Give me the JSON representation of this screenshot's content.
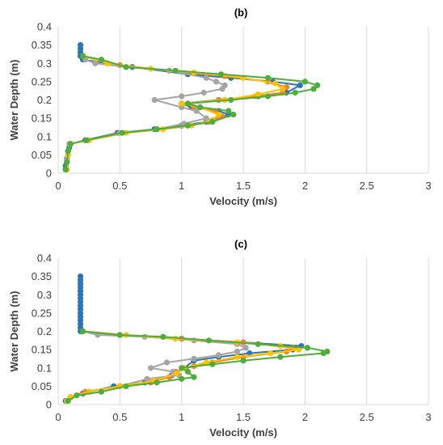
{
  "colors": {
    "gridline": "#d9d9d9",
    "series": [
      "#2e75b6",
      "#f4802a",
      "#a5a5a5",
      "#ffc000",
      "#4daf3a"
    ]
  },
  "chart_data": [
    {
      "type": "line",
      "title": "(b)",
      "xlabel": "Velocity (m/s)",
      "ylabel": "Water Depth (m)",
      "xlim": [
        0,
        3
      ],
      "ylim": [
        0,
        0.4
      ],
      "xticks": [
        "0",
        "0.5",
        "1",
        "1.5",
        "2",
        "2.5",
        "3"
      ],
      "yticks": [
        "0",
        "0.05",
        "0.1",
        "0.15",
        "0.2",
        "0.25",
        "0.3",
        "0.35",
        "0.4"
      ],
      "grid": "vertical",
      "series": [
        {
          "color": "#2e75b6",
          "points": [
            [
              0.06,
              0.01
            ],
            [
              0.06,
              0.02
            ],
            [
              0.07,
              0.03
            ],
            [
              0.07,
              0.04
            ],
            [
              0.08,
              0.05
            ],
            [
              0.08,
              0.06
            ],
            [
              0.09,
              0.07
            ],
            [
              0.1,
              0.08
            ],
            [
              0.22,
              0.09
            ],
            [
              0.48,
              0.11
            ],
            [
              0.78,
              0.12
            ],
            [
              1.0,
              0.13
            ],
            [
              1.2,
              0.14
            ],
            [
              1.38,
              0.16
            ],
            [
              1.3,
              0.17
            ],
            [
              1.08,
              0.18
            ],
            [
              1.0,
              0.19
            ],
            [
              1.3,
              0.2
            ],
            [
              1.62,
              0.21
            ],
            [
              1.85,
              0.22
            ],
            [
              1.96,
              0.24
            ],
            [
              1.74,
              0.25
            ],
            [
              1.4,
              0.26
            ],
            [
              1.05,
              0.27
            ],
            [
              0.6,
              0.29
            ],
            [
              0.2,
              0.31
            ],
            [
              0.18,
              0.32
            ],
            [
              0.18,
              0.33
            ],
            [
              0.18,
              0.34
            ],
            [
              0.18,
              0.35
            ]
          ]
        },
        {
          "color": "#f4802a",
          "points": [
            [
              0.07,
              0.01
            ],
            [
              0.07,
              0.03
            ],
            [
              0.08,
              0.06
            ],
            [
              0.1,
              0.08
            ],
            [
              0.24,
              0.09
            ],
            [
              0.5,
              0.11
            ],
            [
              0.8,
              0.12
            ],
            [
              1.05,
              0.13
            ],
            [
              1.22,
              0.14
            ],
            [
              1.33,
              0.155
            ],
            [
              1.27,
              0.17
            ],
            [
              1.1,
              0.18
            ],
            [
              1.05,
              0.19
            ],
            [
              1.3,
              0.2
            ],
            [
              1.6,
              0.21
            ],
            [
              1.82,
              0.22
            ],
            [
              1.85,
              0.235
            ],
            [
              1.7,
              0.25
            ],
            [
              1.35,
              0.265
            ],
            [
              0.9,
              0.28
            ],
            [
              0.5,
              0.295
            ],
            [
              0.2,
              0.32
            ]
          ]
        },
        {
          "color": "#a5a5a5",
          "points": [
            [
              0.06,
              0.01
            ],
            [
              0.07,
              0.04
            ],
            [
              0.09,
              0.08
            ],
            [
              0.25,
              0.09
            ],
            [
              0.5,
              0.11
            ],
            [
              0.8,
              0.12
            ],
            [
              1.02,
              0.135
            ],
            [
              1.2,
              0.15
            ],
            [
              1.12,
              0.17
            ],
            [
              1.0,
              0.18
            ],
            [
              0.78,
              0.2
            ],
            [
              1.0,
              0.21
            ],
            [
              1.18,
              0.22
            ],
            [
              1.33,
              0.23
            ],
            [
              1.35,
              0.24
            ],
            [
              1.28,
              0.25
            ],
            [
              1.2,
              0.26
            ],
            [
              0.9,
              0.28
            ],
            [
              0.55,
              0.29
            ],
            [
              0.3,
              0.3
            ],
            [
              0.22,
              0.31
            ]
          ]
        },
        {
          "color": "#ffc000",
          "points": [
            [
              0.07,
              0.01
            ],
            [
              0.08,
              0.05
            ],
            [
              0.1,
              0.08
            ],
            [
              0.25,
              0.09
            ],
            [
              0.55,
              0.11
            ],
            [
              0.85,
              0.12
            ],
            [
              1.08,
              0.13
            ],
            [
              1.25,
              0.145
            ],
            [
              1.3,
              0.16
            ],
            [
              1.15,
              0.18
            ],
            [
              1.0,
              0.19
            ],
            [
              1.35,
              0.2
            ],
            [
              1.62,
              0.215
            ],
            [
              1.82,
              0.23
            ],
            [
              1.76,
              0.245
            ],
            [
              1.5,
              0.26
            ],
            [
              1.1,
              0.275
            ],
            [
              0.75,
              0.285
            ],
            [
              0.4,
              0.3
            ],
            [
              0.2,
              0.32
            ]
          ]
        },
        {
          "color": "#4daf3a",
          "points": [
            [
              0.06,
              0.01
            ],
            [
              0.07,
              0.03
            ],
            [
              0.08,
              0.06
            ],
            [
              0.1,
              0.08
            ],
            [
              0.23,
              0.09
            ],
            [
              0.52,
              0.11
            ],
            [
              0.8,
              0.12
            ],
            [
              1.05,
              0.13
            ],
            [
              1.25,
              0.14
            ],
            [
              1.42,
              0.16
            ],
            [
              1.38,
              0.17
            ],
            [
              1.15,
              0.18
            ],
            [
              1.05,
              0.19
            ],
            [
              1.4,
              0.2
            ],
            [
              1.7,
              0.21
            ],
            [
              1.92,
              0.22
            ],
            [
              2.07,
              0.23
            ],
            [
              2.1,
              0.24
            ],
            [
              2.0,
              0.25
            ],
            [
              1.7,
              0.26
            ],
            [
              1.32,
              0.27
            ],
            [
              0.95,
              0.28
            ],
            [
              0.55,
              0.29
            ],
            [
              0.35,
              0.31
            ],
            [
              0.2,
              0.32
            ]
          ]
        }
      ]
    },
    {
      "type": "line",
      "title": "(c)",
      "xlabel": "Velocity (m/s)",
      "ylabel": "Water Depth (m)",
      "xlim": [
        0,
        3
      ],
      "ylim": [
        0,
        0.4
      ],
      "xticks": [
        "0",
        "0.5",
        "1",
        "1.5",
        "2",
        "2.5",
        "3"
      ],
      "yticks": [
        "0",
        "0.05",
        "0.1",
        "0.15",
        "0.2",
        "0.25",
        "0.3",
        "0.35",
        "0.4"
      ],
      "grid": "vertical",
      "series": [
        {
          "color": "#2e75b6",
          "points": [
            [
              0.06,
              0.01
            ],
            [
              0.1,
              0.02
            ],
            [
              0.2,
              0.03
            ],
            [
              0.45,
              0.05
            ],
            [
              0.7,
              0.06
            ],
            [
              0.92,
              0.08
            ],
            [
              1.02,
              0.1
            ],
            [
              1.1,
              0.12
            ],
            [
              1.3,
              0.13
            ],
            [
              1.55,
              0.14
            ],
            [
              1.9,
              0.15
            ],
            [
              1.97,
              0.16
            ],
            [
              1.5,
              0.17
            ],
            [
              1.0,
              0.18
            ],
            [
              0.5,
              0.19
            ],
            [
              0.18,
              0.2
            ],
            [
              0.18,
              0.21
            ],
            [
              0.18,
              0.22
            ],
            [
              0.18,
              0.23
            ],
            [
              0.18,
              0.24
            ],
            [
              0.18,
              0.25
            ],
            [
              0.18,
              0.26
            ],
            [
              0.18,
              0.27
            ],
            [
              0.18,
              0.28
            ],
            [
              0.18,
              0.29
            ],
            [
              0.18,
              0.3
            ],
            [
              0.18,
              0.31
            ],
            [
              0.18,
              0.32
            ],
            [
              0.18,
              0.33
            ],
            [
              0.18,
              0.34
            ],
            [
              0.18,
              0.35
            ]
          ]
        },
        {
          "color": "#f4802a",
          "points": [
            [
              0.07,
              0.01
            ],
            [
              0.1,
              0.02
            ],
            [
              0.22,
              0.035
            ],
            [
              0.5,
              0.05
            ],
            [
              0.75,
              0.06
            ],
            [
              0.9,
              0.075
            ],
            [
              0.95,
              0.09
            ],
            [
              1.1,
              0.105
            ],
            [
              1.25,
              0.115
            ],
            [
              1.5,
              0.13
            ],
            [
              1.85,
              0.145
            ],
            [
              1.9,
              0.155
            ],
            [
              1.5,
              0.17
            ],
            [
              1.0,
              0.18
            ],
            [
              0.5,
              0.19
            ],
            [
              0.2,
              0.2
            ]
          ]
        },
        {
          "color": "#a5a5a5",
          "points": [
            [
              0.07,
              0.01
            ],
            [
              0.1,
              0.02
            ],
            [
              0.25,
              0.035
            ],
            [
              0.5,
              0.05
            ],
            [
              0.72,
              0.07
            ],
            [
              0.98,
              0.08
            ],
            [
              0.93,
              0.09
            ],
            [
              0.75,
              0.1
            ],
            [
              0.88,
              0.115
            ],
            [
              1.1,
              0.125
            ],
            [
              1.3,
              0.135
            ],
            [
              1.45,
              0.145
            ],
            [
              1.52,
              0.155
            ],
            [
              1.45,
              0.165
            ],
            [
              1.1,
              0.175
            ],
            [
              0.7,
              0.185
            ],
            [
              0.32,
              0.19
            ],
            [
              0.2,
              0.2
            ]
          ]
        },
        {
          "color": "#ffc000",
          "points": [
            [
              0.07,
              0.01
            ],
            [
              0.1,
              0.02
            ],
            [
              0.25,
              0.035
            ],
            [
              0.5,
              0.05
            ],
            [
              0.78,
              0.065
            ],
            [
              0.96,
              0.085
            ],
            [
              1.02,
              0.1
            ],
            [
              1.2,
              0.115
            ],
            [
              1.45,
              0.13
            ],
            [
              1.72,
              0.14
            ],
            [
              1.95,
              0.15
            ],
            [
              1.8,
              0.16
            ],
            [
              1.45,
              0.17
            ],
            [
              0.95,
              0.18
            ],
            [
              0.55,
              0.19
            ],
            [
              0.2,
              0.2
            ]
          ]
        },
        {
          "color": "#4daf3a",
          "points": [
            [
              0.08,
              0.01
            ],
            [
              0.15,
              0.025
            ],
            [
              0.35,
              0.035
            ],
            [
              0.55,
              0.05
            ],
            [
              0.8,
              0.06
            ],
            [
              1.0,
              0.07
            ],
            [
              1.1,
              0.075
            ],
            [
              1.05,
              0.09
            ],
            [
              1.0,
              0.1
            ],
            [
              1.25,
              0.11
            ],
            [
              1.5,
              0.12
            ],
            [
              1.8,
              0.13
            ],
            [
              2.15,
              0.14
            ],
            [
              2.18,
              0.145
            ],
            [
              2.02,
              0.155
            ],
            [
              1.62,
              0.165
            ],
            [
              1.22,
              0.175
            ],
            [
              0.85,
              0.185
            ],
            [
              0.5,
              0.19
            ],
            [
              0.2,
              0.2
            ]
          ]
        }
      ]
    }
  ]
}
